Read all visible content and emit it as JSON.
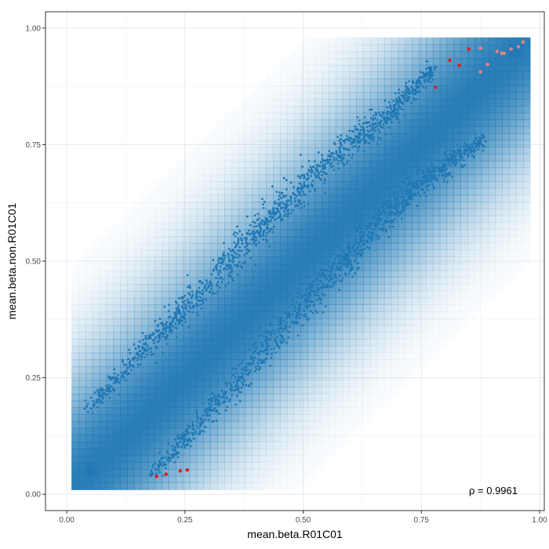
{
  "chart_data": {
    "type": "scatter",
    "title": "",
    "xlabel": "mean.beta.R01C01",
    "ylabel": "mean.beta.non.R01C01",
    "xlim": [
      -0.045,
      1.01
    ],
    "ylim": [
      -0.035,
      1.035
    ],
    "x_ticks": [
      0.0,
      0.25,
      0.5,
      0.75,
      1.0
    ],
    "x_tick_labels": [
      "0.00",
      "0.25",
      "0.50",
      "0.75",
      "1.00"
    ],
    "y_ticks": [
      0.0,
      0.25,
      0.5,
      0.75,
      1.0
    ],
    "y_tick_labels": [
      "0.00",
      "0.25",
      "0.50",
      "0.75",
      "1.00"
    ],
    "grid": true,
    "annotation": "ρ = 0.9961",
    "density_background": {
      "color": "#1f78b4",
      "extent_x": [
        0.01,
        0.98
      ],
      "extent_y": [
        0.01,
        0.98
      ],
      "band_center": "y = x",
      "dense_corners": [
        [
          0.05,
          0.05
        ],
        [
          0.95,
          0.95
        ]
      ]
    },
    "series": [
      {
        "color": "#1f78b4",
        "description": "upper band",
        "line_points": [
          [
            0.04,
            0.18
          ],
          [
            0.12,
            0.26
          ],
          [
            0.2,
            0.35
          ],
          [
            0.3,
            0.45
          ],
          [
            0.4,
            0.56
          ],
          [
            0.5,
            0.66
          ],
          [
            0.6,
            0.75
          ],
          [
            0.7,
            0.83
          ],
          [
            0.78,
            0.92
          ]
        ],
        "count": 1300
      },
      {
        "color": "#1f78b4",
        "description": "lower band",
        "line_points": [
          [
            0.18,
            0.04
          ],
          [
            0.26,
            0.13
          ],
          [
            0.35,
            0.23
          ],
          [
            0.45,
            0.35
          ],
          [
            0.55,
            0.46
          ],
          [
            0.65,
            0.57
          ],
          [
            0.75,
            0.67
          ],
          [
            0.82,
            0.72
          ],
          [
            0.88,
            0.76
          ]
        ],
        "count": 1300
      },
      {
        "color": "#e41a1c",
        "description": "red points",
        "x": [
          0.19,
          0.21,
          0.24,
          0.255,
          0.78,
          0.81,
          0.83,
          0.85
        ],
        "y": [
          0.038,
          0.043,
          0.05,
          0.052,
          0.873,
          0.931,
          0.92,
          0.955
        ]
      },
      {
        "color": "#f08080",
        "description": "light red points",
        "x": [
          0.875,
          0.875,
          0.89,
          0.91,
          0.92,
          0.925,
          0.94,
          0.955,
          0.965
        ],
        "y": [
          0.957,
          0.906,
          0.922,
          0.95,
          0.946,
          0.946,
          0.955,
          0.96,
          0.97
        ]
      }
    ]
  }
}
